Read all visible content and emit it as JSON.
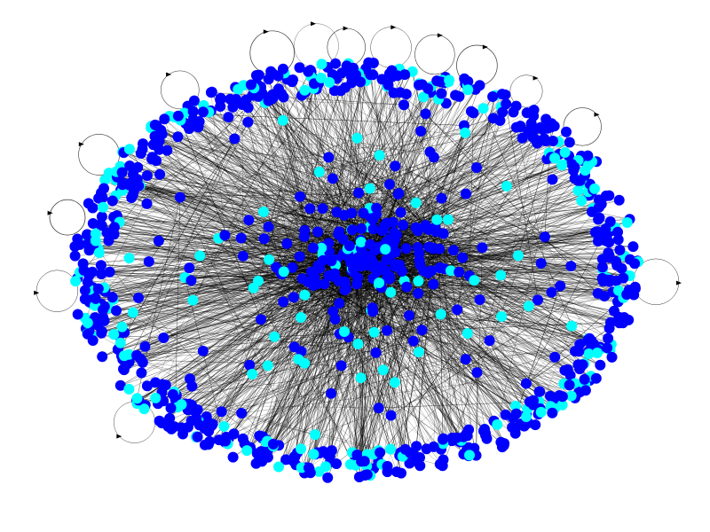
{
  "graph": {
    "type": "directed-network",
    "layout": "ellipse-periphery-with-dense-core",
    "node_count_estimate": 1000,
    "edge_count_estimate": 2200,
    "self_loop_count_estimate": 14,
    "node_categories": [
      {
        "name": "",
        "color": "#0000ff",
        "share": 0.76
      },
      {
        "name": "",
        "color": "#00ffff",
        "share": 0.24
      }
    ],
    "edge_color": "#000000",
    "background_color": "#ffffff",
    "title": ""
  }
}
